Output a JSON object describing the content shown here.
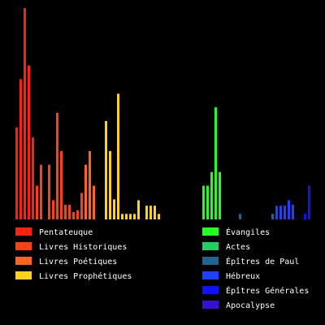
{
  "chart_data": {
    "type": "bar",
    "title": "",
    "xlabel": "",
    "ylabel": "",
    "grid": false,
    "background": "#000000",
    "legend_placement": "bottom",
    "ylim": [
      0,
      232
    ],
    "groups": [
      {
        "name": "Pentateuque",
        "color": "#ff2010",
        "values": [
          101,
          154,
          232,
          169,
          90
        ]
      },
      {
        "name": "Livres Historiques",
        "color": "#ff4010",
        "values": [
          37,
          60,
          0,
          60,
          21,
          117,
          75,
          16,
          16,
          8,
          10,
          29
        ]
      },
      {
        "name": "Livres Poétiques",
        "color": "#ff6520",
        "values": [
          60,
          75,
          37
        ]
      },
      {
        "name": "Livres Prophétiques",
        "color": "#ffd020",
        "values": [
          108,
          75,
          22,
          138,
          6,
          6,
          6,
          6,
          21,
          0,
          15,
          15,
          15,
          6
        ]
      },
      {
        "name": "Évangiles",
        "color": "#20ff20",
        "values": [
          37,
          37,
          52,
          123,
          52
        ]
      },
      {
        "name": "Actes",
        "color": "#20d060",
        "values": []
      },
      {
        "name": "Épîtres de Paul",
        "color": "#206590",
        "values": [
          6,
          0,
          0,
          0,
          0,
          0,
          0,
          0,
          6
        ]
      },
      {
        "name": "Hébreux",
        "color": "#2040ff",
        "values": [
          0,
          0,
          0,
          0,
          15,
          15,
          15,
          21,
          16
        ]
      },
      {
        "name": "Épîtres Générales",
        "color": "#1010ff",
        "values": [
          6,
          37
        ]
      },
      {
        "name": "Apocalypse",
        "color": "#3810d0",
        "values": []
      }
    ],
    "legend": [
      {
        "label": "Pentateuque",
        "color": "#ff2010"
      },
      {
        "label": "Livres Historiques",
        "color": "#ff4010"
      },
      {
        "label": "Livres Poétiques",
        "color": "#ff6520"
      },
      {
        "label": "Livres Prophétiques",
        "color": "#ffd020"
      },
      {
        "label": "Évangiles",
        "color": "#20ff20"
      },
      {
        "label": "Actes",
        "color": "#20d060"
      },
      {
        "label": "Épîtres de Paul",
        "color": "#206590"
      },
      {
        "label": "Hébreux",
        "color": "#2040ff"
      },
      {
        "label": "Épîtres Générales",
        "color": "#1010ff"
      },
      {
        "label": "Apocalypse",
        "color": "#3810d0"
      }
    ]
  }
}
